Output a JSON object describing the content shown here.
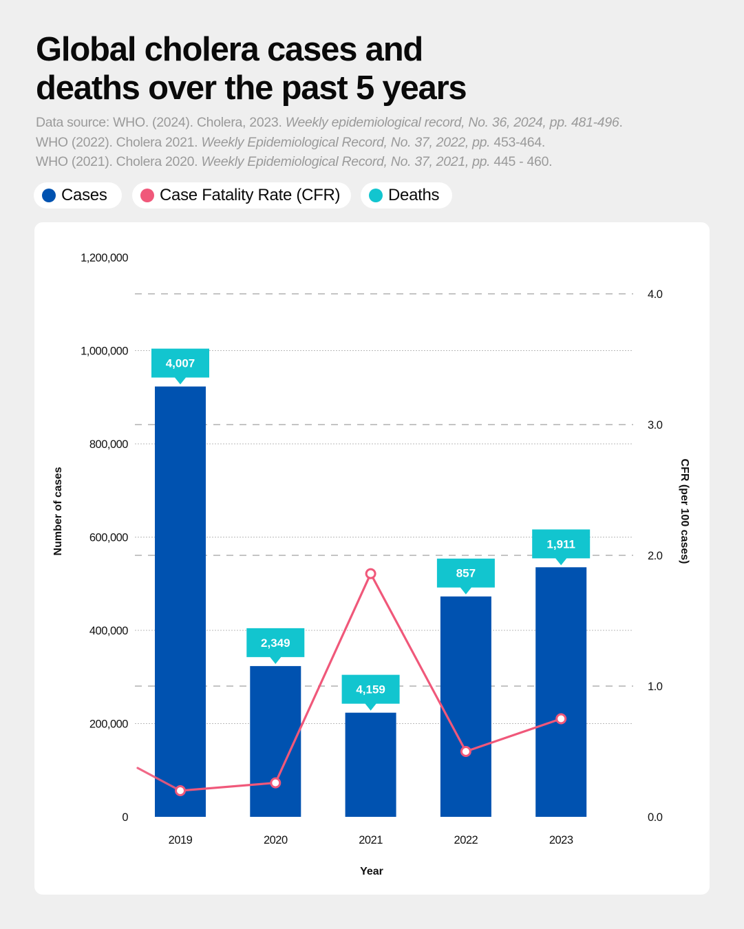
{
  "title": {
    "line1": "Global cholera cases and",
    "line2": "deaths over the past 5 years"
  },
  "source": {
    "line1_plain": "Data source: WHO. (2024). Cholera, 2023. ",
    "line1_italic": "Weekly epidemiological record, No. 36, 2024, pp. 481-496",
    "line1_end": ".",
    "line2_plain": "WHO (2022). Cholera 2021. ",
    "line2_italic": "Weekly Epidemiological Record, No. 37, 2022, pp.",
    "line2_end": " 453-464.",
    "line3_plain": "WHO (2021). Cholera 2020. ",
    "line3_italic": "Weekly Epidemiological Record, No. 37, 2021, pp.",
    "line3_end": " 445 - 460."
  },
  "legend": [
    {
      "label": "Cases",
      "color": "#0052b0"
    },
    {
      "label": "Case Fatality Rate (CFR)",
      "color": "#f0587a"
    },
    {
      "label": "Deaths",
      "color": "#12c5cf"
    }
  ],
  "chart_data": {
    "type": "bar",
    "categories": [
      "2019",
      "2020",
      "2021",
      "2022",
      "2023"
    ],
    "series": [
      {
        "name": "Cases",
        "axis": "left",
        "type": "bar",
        "color": "#0052b0",
        "values": [
          923037,
          323369,
          223370,
          472697,
          535321
        ]
      },
      {
        "name": "Case Fatality Rate (CFR)",
        "axis": "right",
        "type": "line",
        "color": "#f0587a",
        "values": [
          0.2,
          0.26,
          1.86,
          0.5,
          0.75
        ]
      },
      {
        "name": "Deaths",
        "type": "label",
        "color": "#12c5cf",
        "values": [
          4007,
          2349,
          4159,
          857,
          1911
        ],
        "labels": [
          "4,007",
          "2,349",
          "4,159",
          "857",
          "1,911"
        ]
      }
    ],
    "y_left": {
      "label": "Number of cases",
      "ylim": [
        0,
        1200000
      ],
      "ticks": [
        0,
        200000,
        400000,
        600000,
        800000,
        1000000,
        1200000
      ],
      "tick_labels": [
        "0",
        "200,000",
        "400,000",
        "600,000",
        "800,000",
        "1,000,000",
        "1,200,000"
      ]
    },
    "y_right": {
      "label": "CFR (per 100 cases)",
      "ylim": [
        0,
        4.0
      ],
      "ticks": [
        0,
        1,
        2,
        3,
        4
      ],
      "tick_labels": [
        "0.0",
        "1.0",
        "2.0",
        "3.0",
        "4.0"
      ]
    },
    "xlabel": "Year"
  }
}
